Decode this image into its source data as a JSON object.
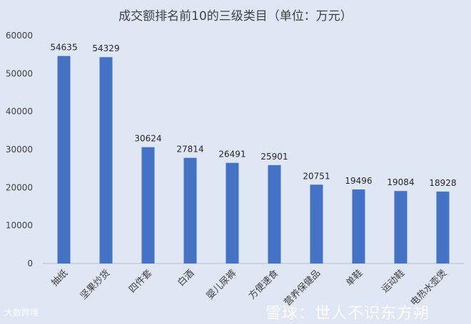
{
  "chart_data": {
    "type": "bar",
    "title": "成交额排名前10的三级类目（单位：万元）",
    "categories": [
      "抽纸",
      "坚果炒货",
      "四件套",
      "白酒",
      "婴儿尿裤",
      "方便速食",
      "营养保健品",
      "单鞋",
      "运动鞋",
      "电热水壶煲"
    ],
    "values": [
      54635,
      54329,
      30624,
      27814,
      26491,
      25901,
      20751,
      19496,
      19084,
      18928
    ],
    "y_ticks": [
      0,
      10000,
      20000,
      30000,
      40000,
      50000,
      60000
    ],
    "ylim": [
      0,
      60000
    ],
    "bar_color": "#4472c4",
    "grid": false,
    "legend": "none"
  },
  "watermarks": {
    "left": "大数跨境",
    "right": "雪球：世人不识东方朔"
  }
}
